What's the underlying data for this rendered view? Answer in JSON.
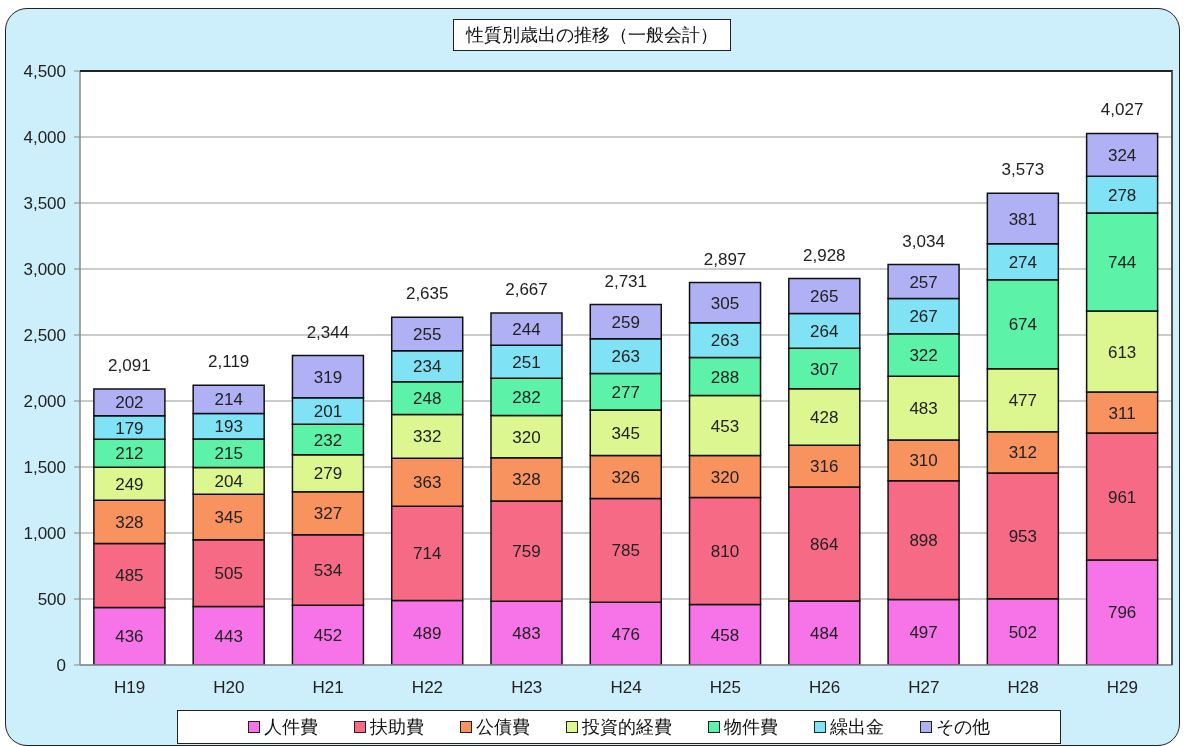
{
  "chart_data": {
    "type": "bar",
    "title": "性質別歳出の推移（一般会計）",
    "categories": [
      "H19",
      "H20",
      "H21",
      "H22",
      "H23",
      "H24",
      "H25",
      "H26",
      "H27",
      "H28",
      "H29"
    ],
    "series": [
      {
        "name": "人件費",
        "color": "#f774e8",
        "values": [
          436,
          443,
          452,
          489,
          483,
          476,
          458,
          484,
          497,
          502,
          796
        ]
      },
      {
        "name": "扶助費",
        "color": "#f76a86",
        "values": [
          485,
          505,
          534,
          714,
          759,
          785,
          810,
          864,
          898,
          953,
          961
        ]
      },
      {
        "name": "公債費",
        "color": "#f8925f",
        "values": [
          328,
          345,
          327,
          363,
          328,
          326,
          320,
          316,
          310,
          312,
          311
        ]
      },
      {
        "name": "投資的経費",
        "color": "#dcf790",
        "values": [
          249,
          204,
          279,
          332,
          320,
          345,
          453,
          428,
          483,
          477,
          613
        ]
      },
      {
        "name": "物件費",
        "color": "#5cf2a8",
        "values": [
          212,
          215,
          232,
          248,
          282,
          277,
          288,
          307,
          322,
          674,
          744
        ]
      },
      {
        "name": "繰出金",
        "color": "#7fe2f5",
        "values": [
          179,
          193,
          201,
          234,
          251,
          263,
          263,
          264,
          267,
          274,
          278
        ]
      },
      {
        "name": "その他",
        "color": "#b0b0f5",
        "values": [
          202,
          214,
          319,
          255,
          244,
          259,
          305,
          265,
          257,
          381,
          324
        ]
      }
    ],
    "stacked": true,
    "ylim": [
      0,
      4500
    ],
    "yticks": [
      0,
      500,
      {
        "value": 1000,
        "label": "1,000"
      },
      {
        "value": 1500,
        "label": "1,500"
      },
      {
        "value": 2000,
        "label": "2,000"
      },
      {
        "value": 2500,
        "label": "2,500"
      },
      {
        "value": 3000,
        "label": "3,000"
      },
      {
        "value": 3500,
        "label": "3,500"
      },
      {
        "value": 4000,
        "label": "4,000"
      },
      {
        "value": 4500,
        "label": "4,500"
      }
    ],
    "grid": "y",
    "legend": "bottom",
    "data_labels": true,
    "totals": [
      "2,091",
      "2,119",
      "2,344",
      "2,635",
      "2,667",
      "2,731",
      "2,897",
      "2,928",
      "3,034",
      "3,573",
      "4,027"
    ]
  }
}
